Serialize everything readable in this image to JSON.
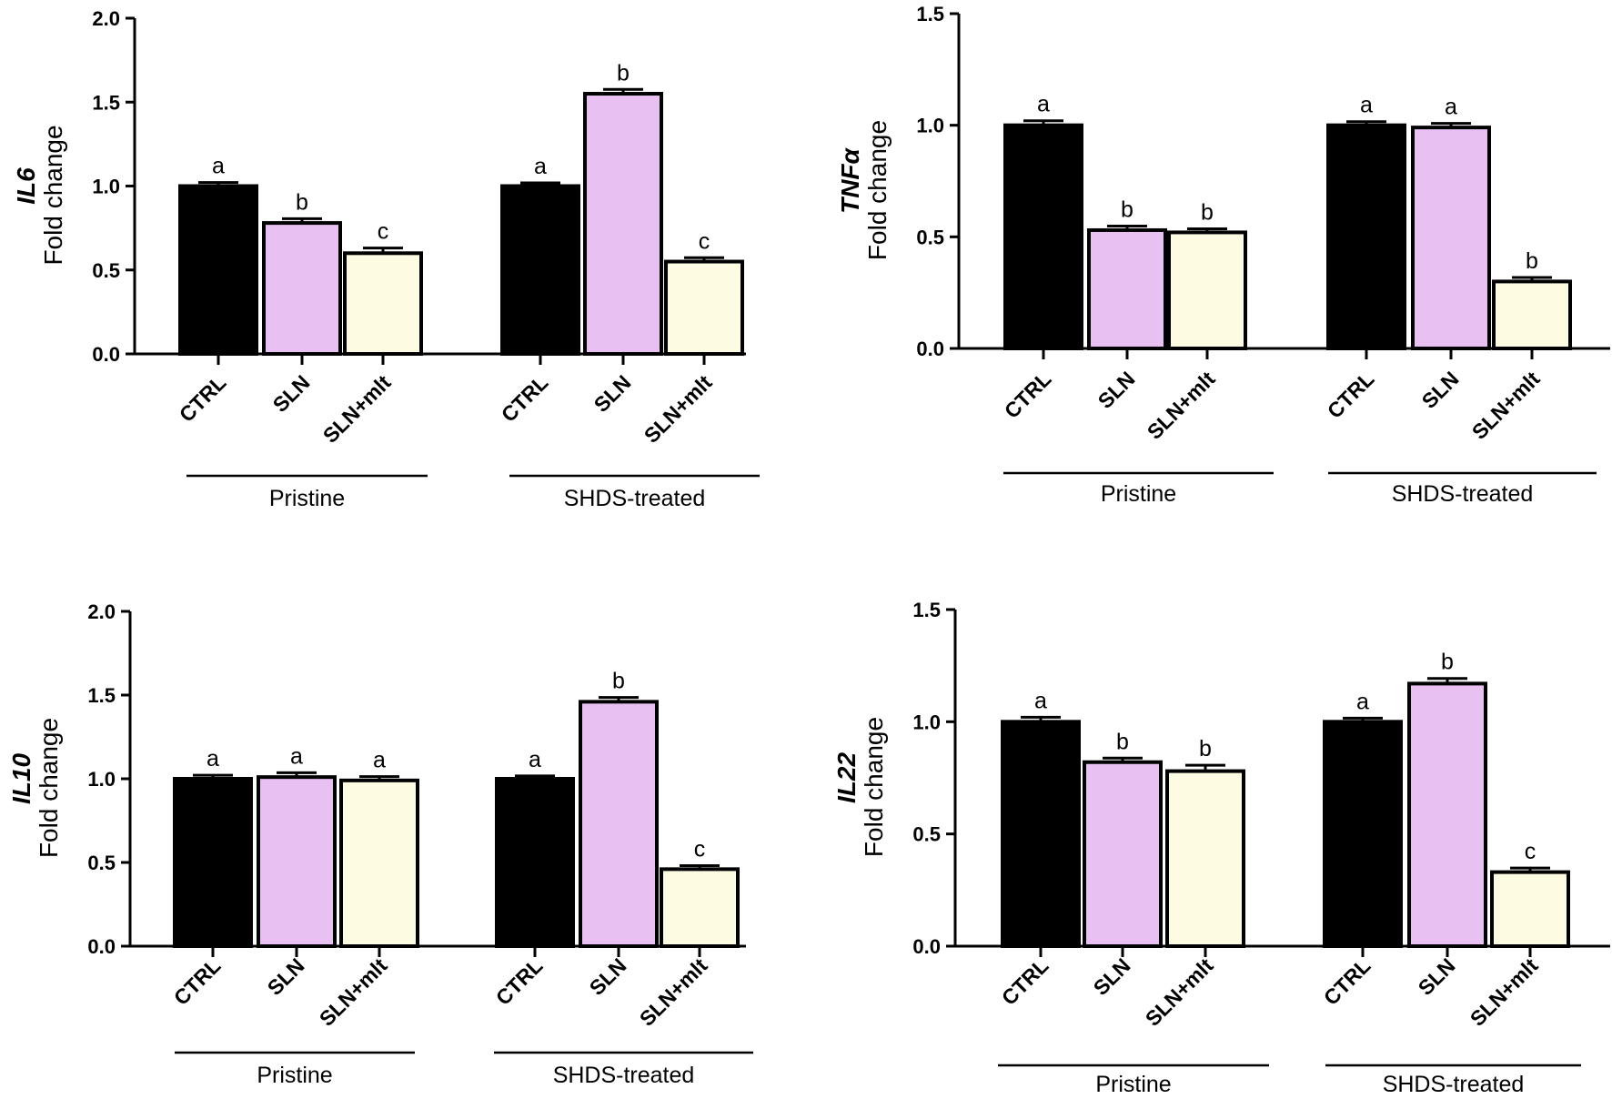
{
  "colors": {
    "ctrl": "#000000",
    "sln": "#e8c1f2",
    "sln_mlt": "#fdfbe2",
    "stroke": "#000000"
  },
  "chart_data": [
    {
      "type": "bar",
      "gene": "IL6",
      "ylabel": "Fold change",
      "ylim": [
        0,
        2.0
      ],
      "yticks": [
        "0.0",
        "0.5",
        "1.0",
        "1.5",
        "2.0"
      ],
      "categories": [
        "CTRL",
        "SLN",
        "SLN+mlt"
      ],
      "groups": [
        {
          "name": "Pristine",
          "values": [
            1.0,
            0.78,
            0.6
          ],
          "errors": [
            0.01,
            0.015,
            0.02
          ],
          "letters": [
            "a",
            "b",
            "c"
          ]
        },
        {
          "name": "SHDS-treated",
          "values": [
            1.0,
            1.55,
            0.55
          ],
          "errors": [
            0.008,
            0.015,
            0.012
          ],
          "letters": [
            "a",
            "b",
            "c"
          ]
        }
      ]
    },
    {
      "type": "bar",
      "gene": "TNFα",
      "ylabel": "Fold change",
      "ylim": [
        0,
        1.5
      ],
      "yticks": [
        "0.0",
        "0.5",
        "1.0",
        "1.5"
      ],
      "categories": [
        "CTRL",
        "SLN",
        "SLN+mlt"
      ],
      "groups": [
        {
          "name": "Pristine",
          "values": [
            1.0,
            0.53,
            0.52
          ],
          "errors": [
            0.012,
            0.01,
            0.008
          ],
          "letters": [
            "a",
            "b",
            "b"
          ]
        },
        {
          "name": "SHDS-treated",
          "values": [
            1.0,
            0.99,
            0.3
          ],
          "errors": [
            0.008,
            0.01,
            0.01
          ],
          "letters": [
            "a",
            "a",
            "b"
          ]
        }
      ]
    },
    {
      "type": "bar",
      "gene": "IL10",
      "ylabel": "Fold change",
      "ylim": [
        0,
        2.0
      ],
      "yticks": [
        "0.0",
        "0.5",
        "1.0",
        "1.5",
        "2.0"
      ],
      "categories": [
        "CTRL",
        "SLN",
        "SLN+mlt"
      ],
      "groups": [
        {
          "name": "Pristine",
          "values": [
            1.0,
            1.01,
            0.99
          ],
          "errors": [
            0.01,
            0.015,
            0.012
          ],
          "letters": [
            "a",
            "a",
            "a"
          ]
        },
        {
          "name": "SHDS-treated",
          "values": [
            1.0,
            1.46,
            0.46
          ],
          "errors": [
            0.006,
            0.015,
            0.01
          ],
          "letters": [
            "a",
            "b",
            "c"
          ]
        }
      ]
    },
    {
      "type": "bar",
      "gene": "IL22",
      "ylabel": "Fold change",
      "ylim": [
        0,
        1.5
      ],
      "yticks": [
        "0.0",
        "0.5",
        "1.0",
        "1.5"
      ],
      "categories": [
        "CTRL",
        "SLN",
        "SLN+mlt"
      ],
      "groups": [
        {
          "name": "Pristine",
          "values": [
            1.0,
            0.82,
            0.78
          ],
          "errors": [
            0.012,
            0.01,
            0.018
          ],
          "letters": [
            "a",
            "b",
            "b"
          ]
        },
        {
          "name": "SHDS-treated",
          "values": [
            1.0,
            1.17,
            0.33
          ],
          "errors": [
            0.008,
            0.015,
            0.01
          ],
          "letters": [
            "a",
            "b",
            "c"
          ]
        }
      ]
    }
  ]
}
